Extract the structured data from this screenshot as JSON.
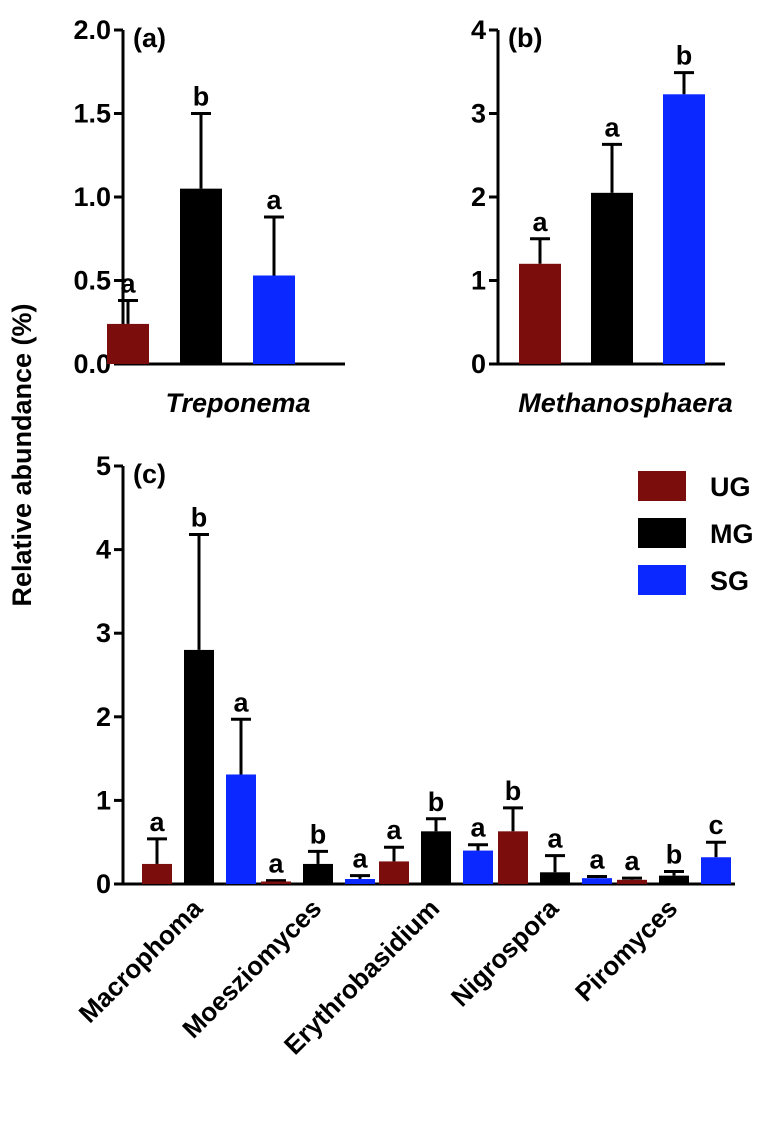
{
  "ylabel": "Relative abundance (%)",
  "legend": [
    {
      "label": "UG",
      "color": "#7b0d0d"
    },
    {
      "label": "MG",
      "color": "#000000"
    },
    {
      "label": "SG",
      "color": "#0a28ff"
    }
  ],
  "chart_data": [
    {
      "type": "bar",
      "panel": "(a)",
      "xlabel": "Treponema",
      "ylabel": "Relative abundance (%)",
      "ylim": [
        0,
        2.0
      ],
      "yticks": [
        "0.0",
        "0.5",
        "1.0",
        "1.5",
        "2.0"
      ],
      "series": [
        {
          "name": "UG",
          "values": [
            0.24
          ],
          "errors": [
            0.14
          ],
          "letters": [
            "a"
          ]
        },
        {
          "name": "MG",
          "values": [
            1.05
          ],
          "errors": [
            0.45
          ],
          "letters": [
            "b"
          ]
        },
        {
          "name": "SG",
          "values": [
            0.53
          ],
          "errors": [
            0.35
          ],
          "letters": [
            "a"
          ]
        }
      ]
    },
    {
      "type": "bar",
      "panel": "(b)",
      "xlabel": "Methanosphaera",
      "ylim": [
        0,
        4
      ],
      "yticks": [
        "0",
        "1",
        "2",
        "3",
        "4"
      ],
      "series": [
        {
          "name": "UG",
          "values": [
            1.2
          ],
          "errors": [
            0.3
          ],
          "letters": [
            "a"
          ]
        },
        {
          "name": "MG",
          "values": [
            2.05
          ],
          "errors": [
            0.58
          ],
          "letters": [
            "a"
          ]
        },
        {
          "name": "SG",
          "values": [
            3.23
          ],
          "errors": [
            0.26
          ],
          "letters": [
            "b"
          ]
        }
      ]
    },
    {
      "type": "bar",
      "panel": "(c)",
      "categories": [
        "Macrophoma",
        "Moesziomyces",
        "Erythrobasidium",
        "Nigrospora",
        "Piromyces"
      ],
      "ylim": [
        0,
        5
      ],
      "yticks": [
        "0",
        "1",
        "2",
        "3",
        "4",
        "5"
      ],
      "legend_position": "top-right",
      "series": [
        {
          "name": "UG",
          "values": [
            0.24,
            0.03,
            0.27,
            0.63,
            0.05
          ],
          "errors": [
            0.3,
            0.01,
            0.17,
            0.28,
            0.02
          ],
          "letters": [
            "a",
            "a",
            "a",
            "b",
            "a"
          ]
        },
        {
          "name": "MG",
          "values": [
            2.8,
            0.24,
            0.63,
            0.14,
            0.1
          ],
          "errors": [
            1.38,
            0.15,
            0.15,
            0.2,
            0.05
          ],
          "letters": [
            "b",
            "b",
            "b",
            "a",
            "b"
          ]
        },
        {
          "name": "SG",
          "values": [
            1.31,
            0.06,
            0.4,
            0.07,
            0.32
          ],
          "errors": [
            0.66,
            0.04,
            0.07,
            0.02,
            0.18
          ],
          "letters": [
            "a",
            "a",
            "a",
            "a",
            "c"
          ]
        }
      ]
    }
  ]
}
